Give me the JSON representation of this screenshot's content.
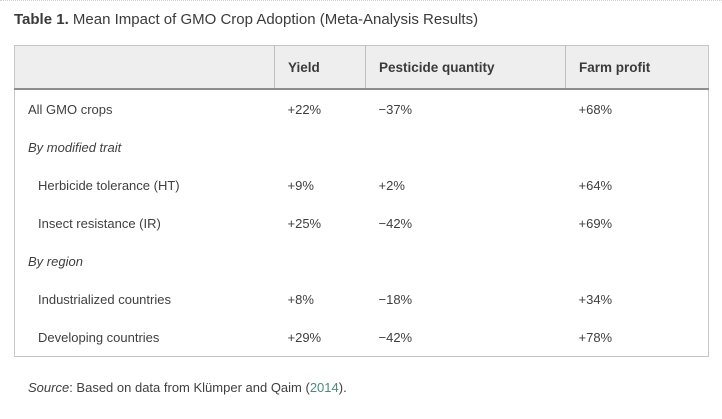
{
  "page": {
    "title_prefix": "Table 1.",
    "title_rest": " Mean Impact of GMO Crop Adoption (Meta-Analysis Results)"
  },
  "table": {
    "columns": [
      "",
      "Yield",
      "Pesticide quantity",
      "Farm profit"
    ],
    "rows": [
      {
        "label": "All GMO crops",
        "yield": "+22%",
        "pesticide": "−37%",
        "profit": "+68%",
        "style": "normal"
      },
      {
        "label": "By modified trait",
        "yield": "",
        "pesticide": "",
        "profit": "",
        "style": "section"
      },
      {
        "label": "Herbicide tolerance (HT)",
        "yield": "+9%",
        "pesticide": "+2%",
        "profit": "+64%",
        "style": "indent"
      },
      {
        "label": "Insect resistance (IR)",
        "yield": "+25%",
        "pesticide": "−42%",
        "profit": "+69%",
        "style": "indent"
      },
      {
        "label": "By region",
        "yield": "",
        "pesticide": "",
        "profit": "",
        "style": "section"
      },
      {
        "label": "Industrialized countries",
        "yield": "+8%",
        "pesticide": "−18%",
        "profit": "+34%",
        "style": "indent"
      },
      {
        "label": "Developing countries",
        "yield": "+29%",
        "pesticide": "−42%",
        "profit": "+78%",
        "style": "indent"
      }
    ]
  },
  "source": {
    "prefix": "Source",
    "mid": ": Based on data from Klümper and Qaim (",
    "link": "2014",
    "suffix": ")."
  },
  "colors": {
    "text": "#3f3f3f",
    "header_bg": "#eeeeee",
    "outer_border": "#c6c6c6",
    "header_rule": "#8f8f8f",
    "header_divider": "#bfbfbf",
    "link": "#4d8a80"
  },
  "chart_data": {
    "type": "table",
    "title": "Table 1. Mean Impact of GMO Crop Adoption (Meta-Analysis Results)",
    "columns": [
      "Yield",
      "Pesticide quantity",
      "Farm profit"
    ],
    "rows": [
      {
        "category": "All GMO crops",
        "group": "",
        "values_pct": [
          22,
          -37,
          68
        ]
      },
      {
        "category": "Herbicide tolerance (HT)",
        "group": "By modified trait",
        "values_pct": [
          9,
          2,
          64
        ]
      },
      {
        "category": "Insect resistance (IR)",
        "group": "By modified trait",
        "values_pct": [
          25,
          -42,
          69
        ]
      },
      {
        "category": "Industrialized countries",
        "group": "By region",
        "values_pct": [
          8,
          -18,
          34
        ]
      },
      {
        "category": "Developing countries",
        "group": "By region",
        "values_pct": [
          29,
          -42,
          78
        ]
      }
    ],
    "source": "Based on data from Klümper and Qaim (2014)."
  }
}
